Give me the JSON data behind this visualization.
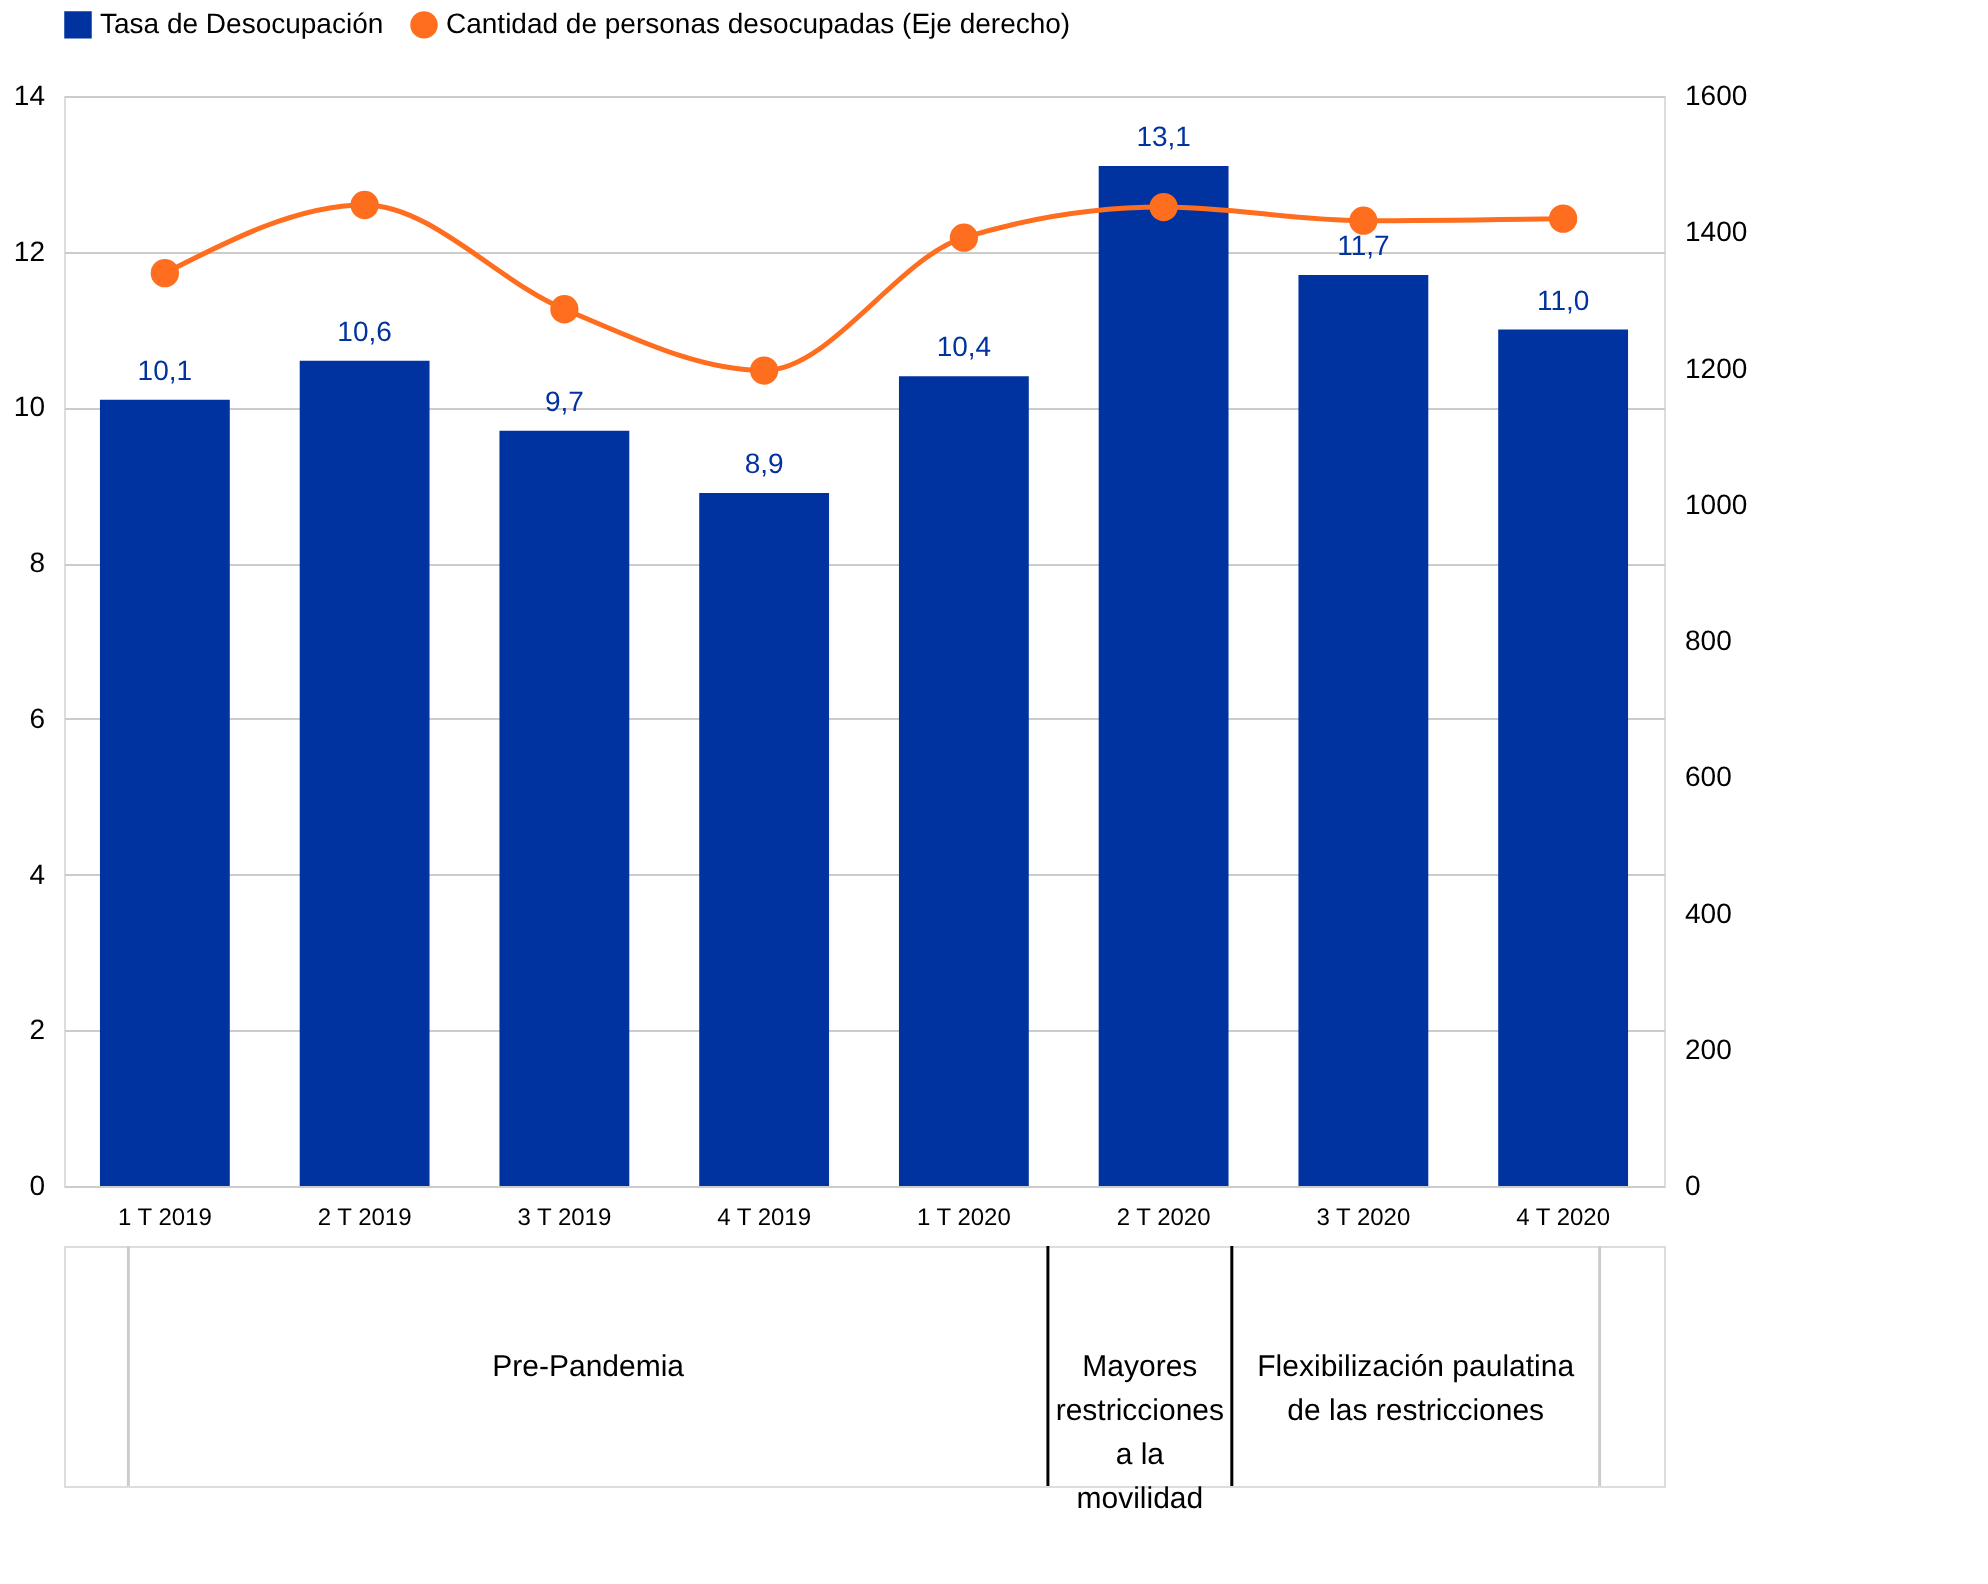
{
  "chart_data": {
    "type": "bar",
    "categories": [
      "1 T 2019",
      "2 T 2019",
      "3 T 2019",
      "4 T 2019",
      "1 T 2020",
      "2 T 2020",
      "3 T 2020",
      "4 T 2020"
    ],
    "series": [
      {
        "name": "Tasa de Desocupación",
        "color": "#0033a0",
        "values": [
          10.1,
          10.6,
          9.7,
          8.9,
          10.4,
          13.1,
          11.7,
          11.0
        ],
        "value_labels": [
          "10,1",
          "10,6",
          "9,7",
          "8,9",
          "10,4",
          "13,1",
          "11,7",
          "11,0"
        ]
      },
      {
        "name": "Cantidad de personas desocupadas (Eje derecho)",
        "type": "line",
        "axis": "y2",
        "color": "#ff6d1f",
        "marker": "circle",
        "values": [
          1340,
          1440,
          1287,
          1197,
          1392,
          1437,
          1417,
          1420
        ]
      }
    ],
    "ylim": [
      0,
      14
    ],
    "yticks": [
      0,
      2,
      4,
      6,
      8,
      10,
      12,
      14
    ],
    "y2lim": [
      0,
      1600
    ],
    "y2ticks": [
      0,
      200,
      400,
      600,
      800,
      1000,
      1200,
      1400,
      1600
    ],
    "grid": "y",
    "legend": "top",
    "annotations": [
      "Pre-Pandemia",
      "Mayores restricciones a la movilidad",
      "Flexibilización paulatina de las restricciones"
    ]
  }
}
